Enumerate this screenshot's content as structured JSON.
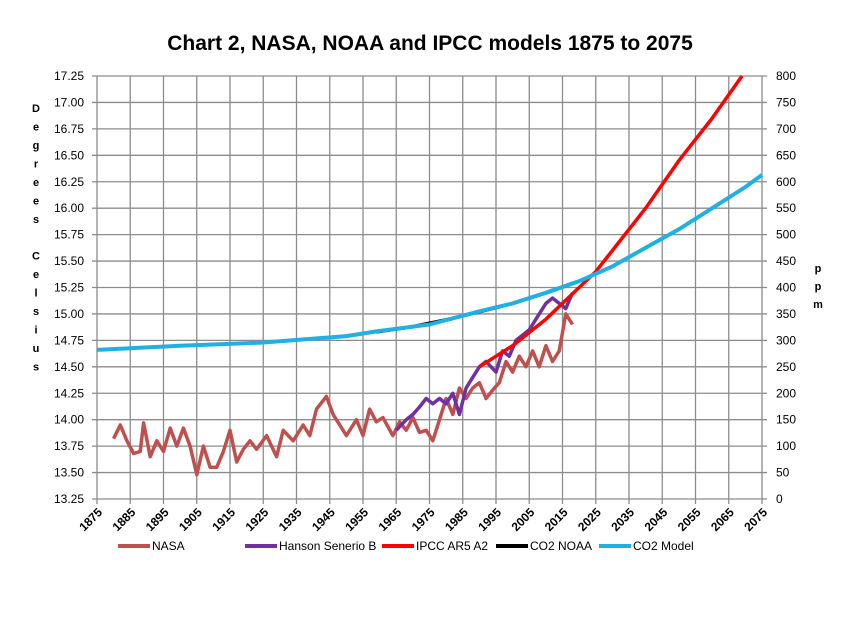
{
  "chart_data": {
    "type": "line",
    "title": "Chart 2, NASA, NOAA and IPCC models 1875 to 2075",
    "ylabel": "Degrees Celsius",
    "y2label": "ppm",
    "xlim": [
      1875,
      2075
    ],
    "ylim": [
      13.25,
      17.25
    ],
    "y2lim": [
      0,
      800
    ],
    "x_ticks": [
      "1875",
      "1885",
      "1895",
      "1905",
      "1915",
      "1925",
      "1935",
      "1945",
      "1955",
      "1965",
      "1975",
      "1985",
      "1995",
      "2005",
      "2015",
      "2025",
      "2035",
      "2045",
      "2055",
      "2065",
      "2075"
    ],
    "y_ticks": [
      "13.25",
      "13.50",
      "13.75",
      "14.00",
      "14.25",
      "14.50",
      "14.75",
      "15.00",
      "15.25",
      "15.50",
      "15.75",
      "16.00",
      "16.25",
      "16.50",
      "16.75",
      "17.00",
      "17.25"
    ],
    "y2_ticks": [
      "0",
      "50",
      "100",
      "150",
      "200",
      "250",
      "300",
      "350",
      "400",
      "450",
      "500",
      "550",
      "600",
      "650",
      "700",
      "750",
      "800"
    ],
    "grid": true,
    "legend_position": "bottom",
    "series": [
      {
        "name": "NASA",
        "axis": "left",
        "color": "#c0504d",
        "x": [
          1880,
          1882,
          1884,
          1886,
          1888,
          1889,
          1891,
          1893,
          1895,
          1897,
          1899,
          1901,
          1903,
          1905,
          1907,
          1909,
          1911,
          1913,
          1915,
          1917,
          1919,
          1921,
          1923,
          1926,
          1929,
          1931,
          1934,
          1937,
          1939,
          1941,
          1944,
          1946,
          1948,
          1950,
          1953,
          1955,
          1957,
          1959,
          1961,
          1964,
          1966,
          1968,
          1970,
          1972,
          1974,
          1976,
          1978,
          1980,
          1982,
          1984,
          1986,
          1988,
          1990,
          1992,
          1994,
          1996,
          1998,
          2000,
          2002,
          2004,
          2006,
          2008,
          2010,
          2012,
          2014,
          2016,
          2018
        ],
        "y": [
          13.82,
          13.95,
          13.8,
          13.68,
          13.7,
          13.97,
          13.65,
          13.8,
          13.7,
          13.92,
          13.75,
          13.92,
          13.75,
          13.48,
          13.75,
          13.55,
          13.55,
          13.7,
          13.9,
          13.6,
          13.72,
          13.8,
          13.72,
          13.85,
          13.65,
          13.9,
          13.8,
          13.95,
          13.85,
          14.1,
          14.22,
          14.05,
          13.95,
          13.85,
          14.0,
          13.85,
          14.1,
          13.98,
          14.02,
          13.85,
          13.98,
          13.9,
          14.02,
          13.88,
          13.9,
          13.8,
          14.0,
          14.2,
          14.05,
          14.3,
          14.2,
          14.3,
          14.35,
          14.2,
          14.28,
          14.35,
          14.55,
          14.45,
          14.6,
          14.5,
          14.65,
          14.5,
          14.7,
          14.55,
          14.65,
          15.0,
          14.9
        ]
      },
      {
        "name": "Hanson Senerio B",
        "axis": "left",
        "color": "#7030a0",
        "x": [
          1965,
          1968,
          1970,
          1972,
          1974,
          1976,
          1978,
          1980,
          1982,
          1984,
          1986,
          1988,
          1990,
          1992,
          1995,
          1997,
          1999,
          2001,
          2003,
          2005,
          2008,
          2010,
          2012,
          2014,
          2016,
          2018
        ],
        "y": [
          13.9,
          14.0,
          14.05,
          14.12,
          14.2,
          14.15,
          14.2,
          14.15,
          14.25,
          14.05,
          14.3,
          14.4,
          14.5,
          14.55,
          14.45,
          14.65,
          14.6,
          14.75,
          14.8,
          14.85,
          15.0,
          15.1,
          15.15,
          15.1,
          15.05,
          15.2
        ]
      },
      {
        "name": "IPCC AR5 A2",
        "axis": "left",
        "color": "#ff0000",
        "x": [
          1990,
          2000,
          2010,
          2020,
          2025,
          2030,
          2040,
          2050,
          2060,
          2069
        ],
        "y": [
          14.5,
          14.7,
          14.95,
          15.25,
          15.4,
          15.6,
          16.0,
          16.45,
          16.85,
          17.25
        ]
      },
      {
        "name": "CO2 NOAA",
        "axis": "right",
        "color": "#000000",
        "x": [
          1959,
          1970,
          1980,
          1990,
          2000,
          2010,
          2018
        ],
        "y": [
          316,
          326,
          339,
          354,
          370,
          390,
          408
        ]
      },
      {
        "name": "CO2 Model",
        "axis": "right",
        "color": "#1fb0e4",
        "x": [
          1875,
          1900,
          1925,
          1950,
          1960,
          1975,
          1990,
          2000,
          2010,
          2020,
          2030,
          2040,
          2050,
          2060,
          2070,
          2075
        ],
        "y": [
          282,
          290,
          296,
          308,
          318,
          330,
          355,
          370,
          390,
          412,
          440,
          475,
          510,
          550,
          590,
          613
        ]
      }
    ]
  }
}
